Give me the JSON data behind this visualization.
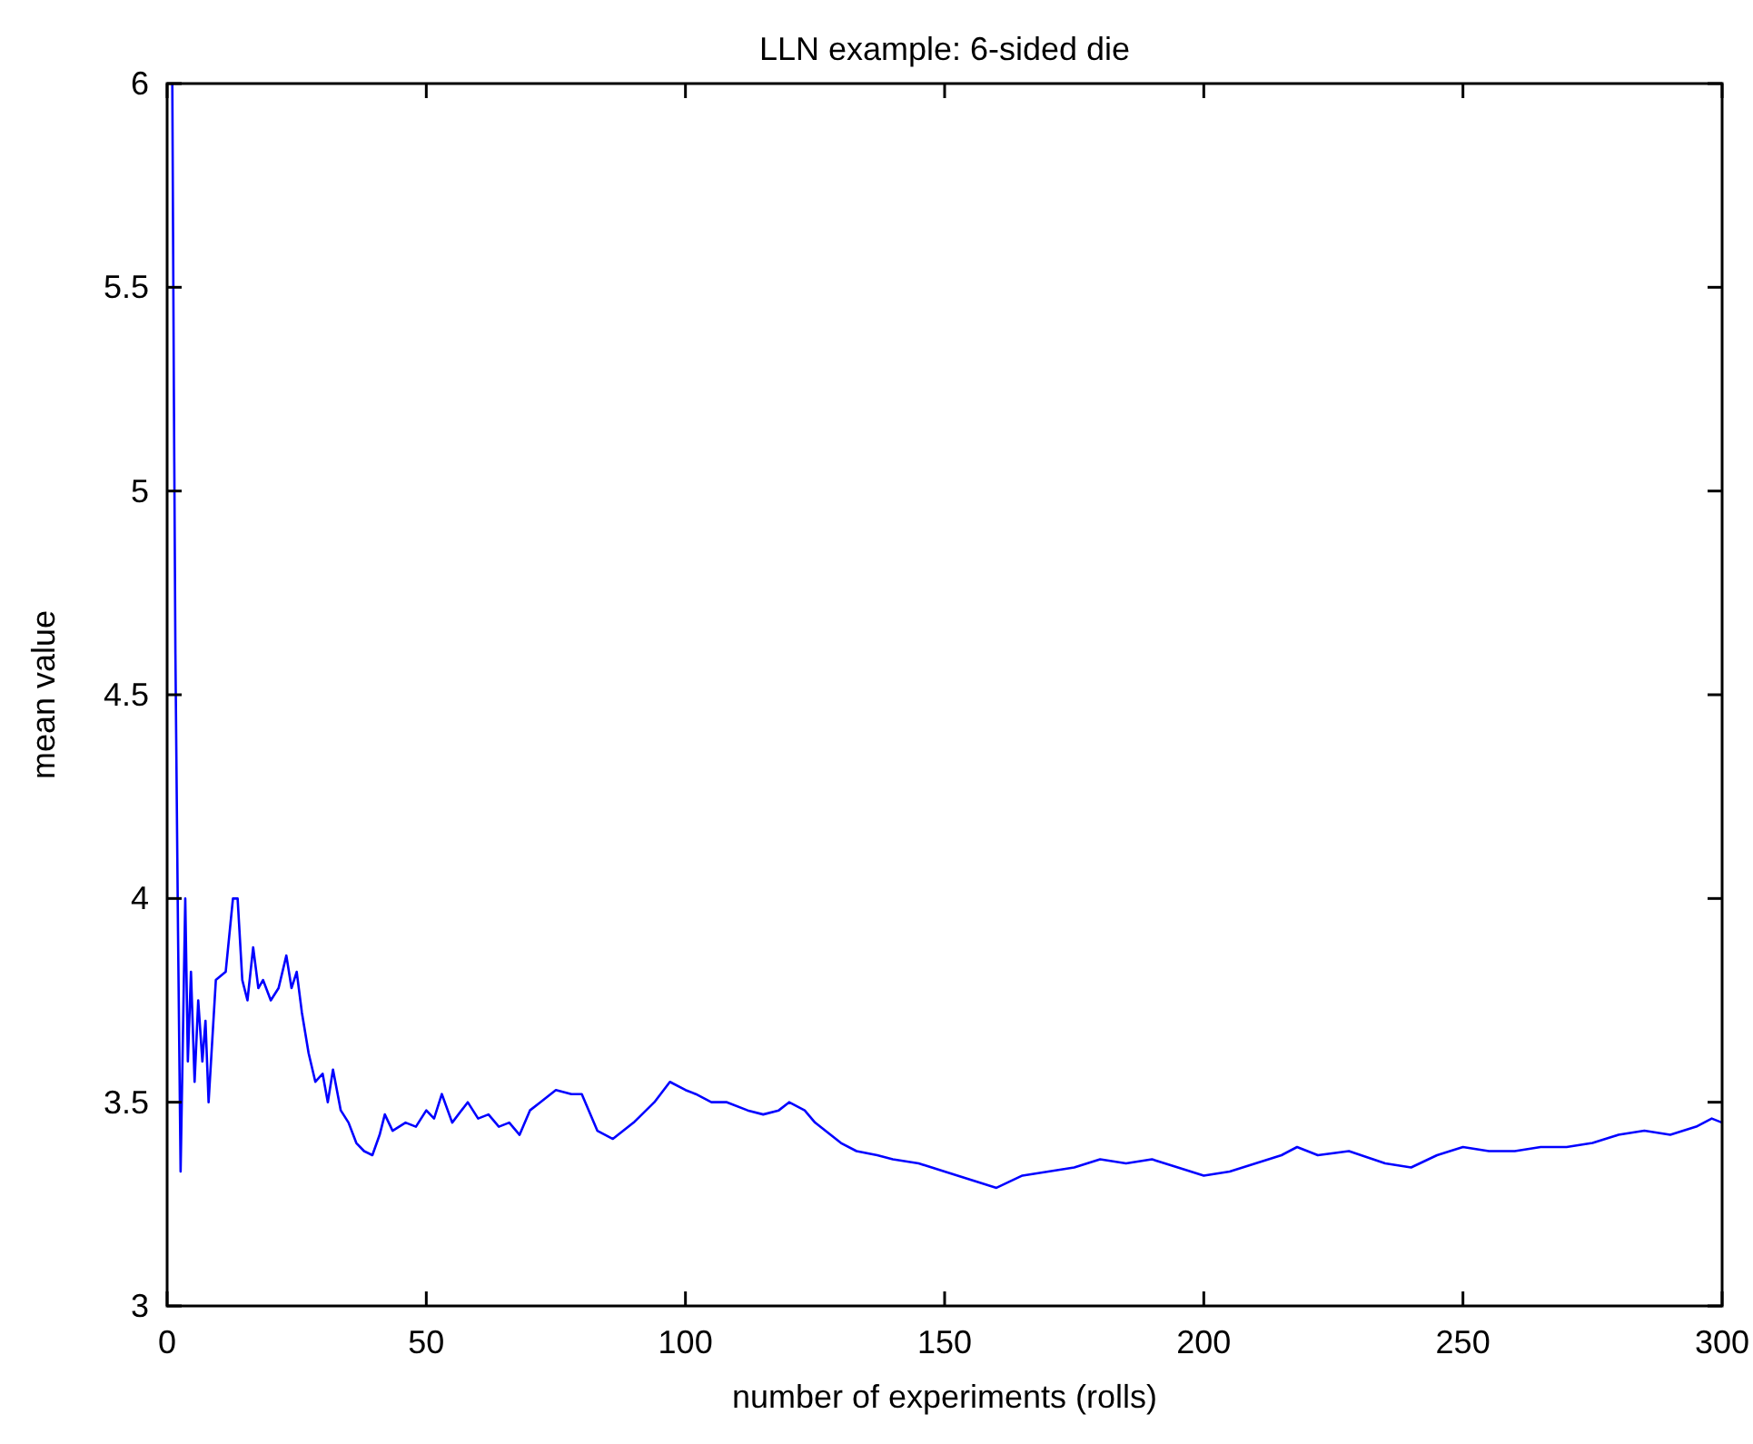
{
  "chart_data": {
    "type": "line",
    "title": "LLN example: 6-sided die",
    "xlabel": "number of experiments (rolls)",
    "ylabel": "mean value",
    "xlim": [
      0,
      300
    ],
    "xticks": [
      0,
      50,
      100,
      150,
      200,
      250,
      300
    ],
    "ylim": [
      3,
      6
    ],
    "yticks": [
      3,
      3.5,
      4,
      4.5,
      5,
      5.5,
      6
    ],
    "grid": false,
    "marker": "none",
    "line_style": "solid",
    "series": [
      {
        "color": "#0000ff",
        "x": [
          1,
          1.3,
          1.6,
          2.1,
          2.6,
          3.5,
          4,
          4.6,
          5.3,
          6,
          6.8,
          7.4,
          8,
          9.4,
          11.3,
          12.7,
          13.6,
          14.5,
          15.5,
          16.6,
          17.6,
          18.5,
          20,
          21.5,
          23,
          24,
          25,
          26,
          27.3,
          28.6,
          30,
          31,
          32,
          33.5,
          35,
          36.5,
          38,
          39.6,
          41,
          42,
          43.5,
          46,
          48,
          50,
          51.5,
          53,
          55,
          58,
          60,
          62,
          64,
          66,
          68,
          70,
          72,
          75,
          78,
          80,
          83,
          86,
          90,
          94,
          97,
          100,
          102,
          105,
          108,
          112,
          115,
          118,
          120,
          123,
          125,
          128,
          130,
          133,
          137,
          140,
          145,
          150,
          155,
          160,
          165,
          170,
          175,
          180,
          185,
          190,
          195,
          200,
          205,
          210,
          215,
          218,
          222,
          228,
          235,
          240,
          245,
          250,
          255,
          260,
          265,
          270,
          275,
          280,
          285,
          290,
          295,
          298,
          300
        ],
        "values": [
          6,
          5.25,
          4.6,
          3.92,
          3.33,
          4,
          3.6,
          3.82,
          3.55,
          3.75,
          3.6,
          3.7,
          3.5,
          3.8,
          3.82,
          4,
          4,
          3.8,
          3.75,
          3.88,
          3.78,
          3.8,
          3.75,
          3.78,
          3.86,
          3.78,
          3.82,
          3.72,
          3.62,
          3.55,
          3.57,
          3.5,
          3.58,
          3.48,
          3.45,
          3.4,
          3.38,
          3.37,
          3.42,
          3.47,
          3.43,
          3.45,
          3.44,
          3.48,
          3.46,
          3.52,
          3.45,
          3.5,
          3.46,
          3.47,
          3.44,
          3.45,
          3.42,
          3.48,
          3.5,
          3.53,
          3.52,
          3.52,
          3.43,
          3.41,
          3.45,
          3.5,
          3.55,
          3.53,
          3.52,
          3.5,
          3.5,
          3.48,
          3.47,
          3.48,
          3.5,
          3.48,
          3.45,
          3.42,
          3.4,
          3.38,
          3.37,
          3.36,
          3.35,
          3.33,
          3.31,
          3.29,
          3.32,
          3.33,
          3.34,
          3.36,
          3.35,
          3.36,
          3.34,
          3.32,
          3.33,
          3.35,
          3.37,
          3.39,
          3.37,
          3.38,
          3.35,
          3.34,
          3.37,
          3.39,
          3.38,
          3.38,
          3.39,
          3.39,
          3.4,
          3.42,
          3.43,
          3.42,
          3.44,
          3.46,
          3.45
        ]
      }
    ]
  }
}
